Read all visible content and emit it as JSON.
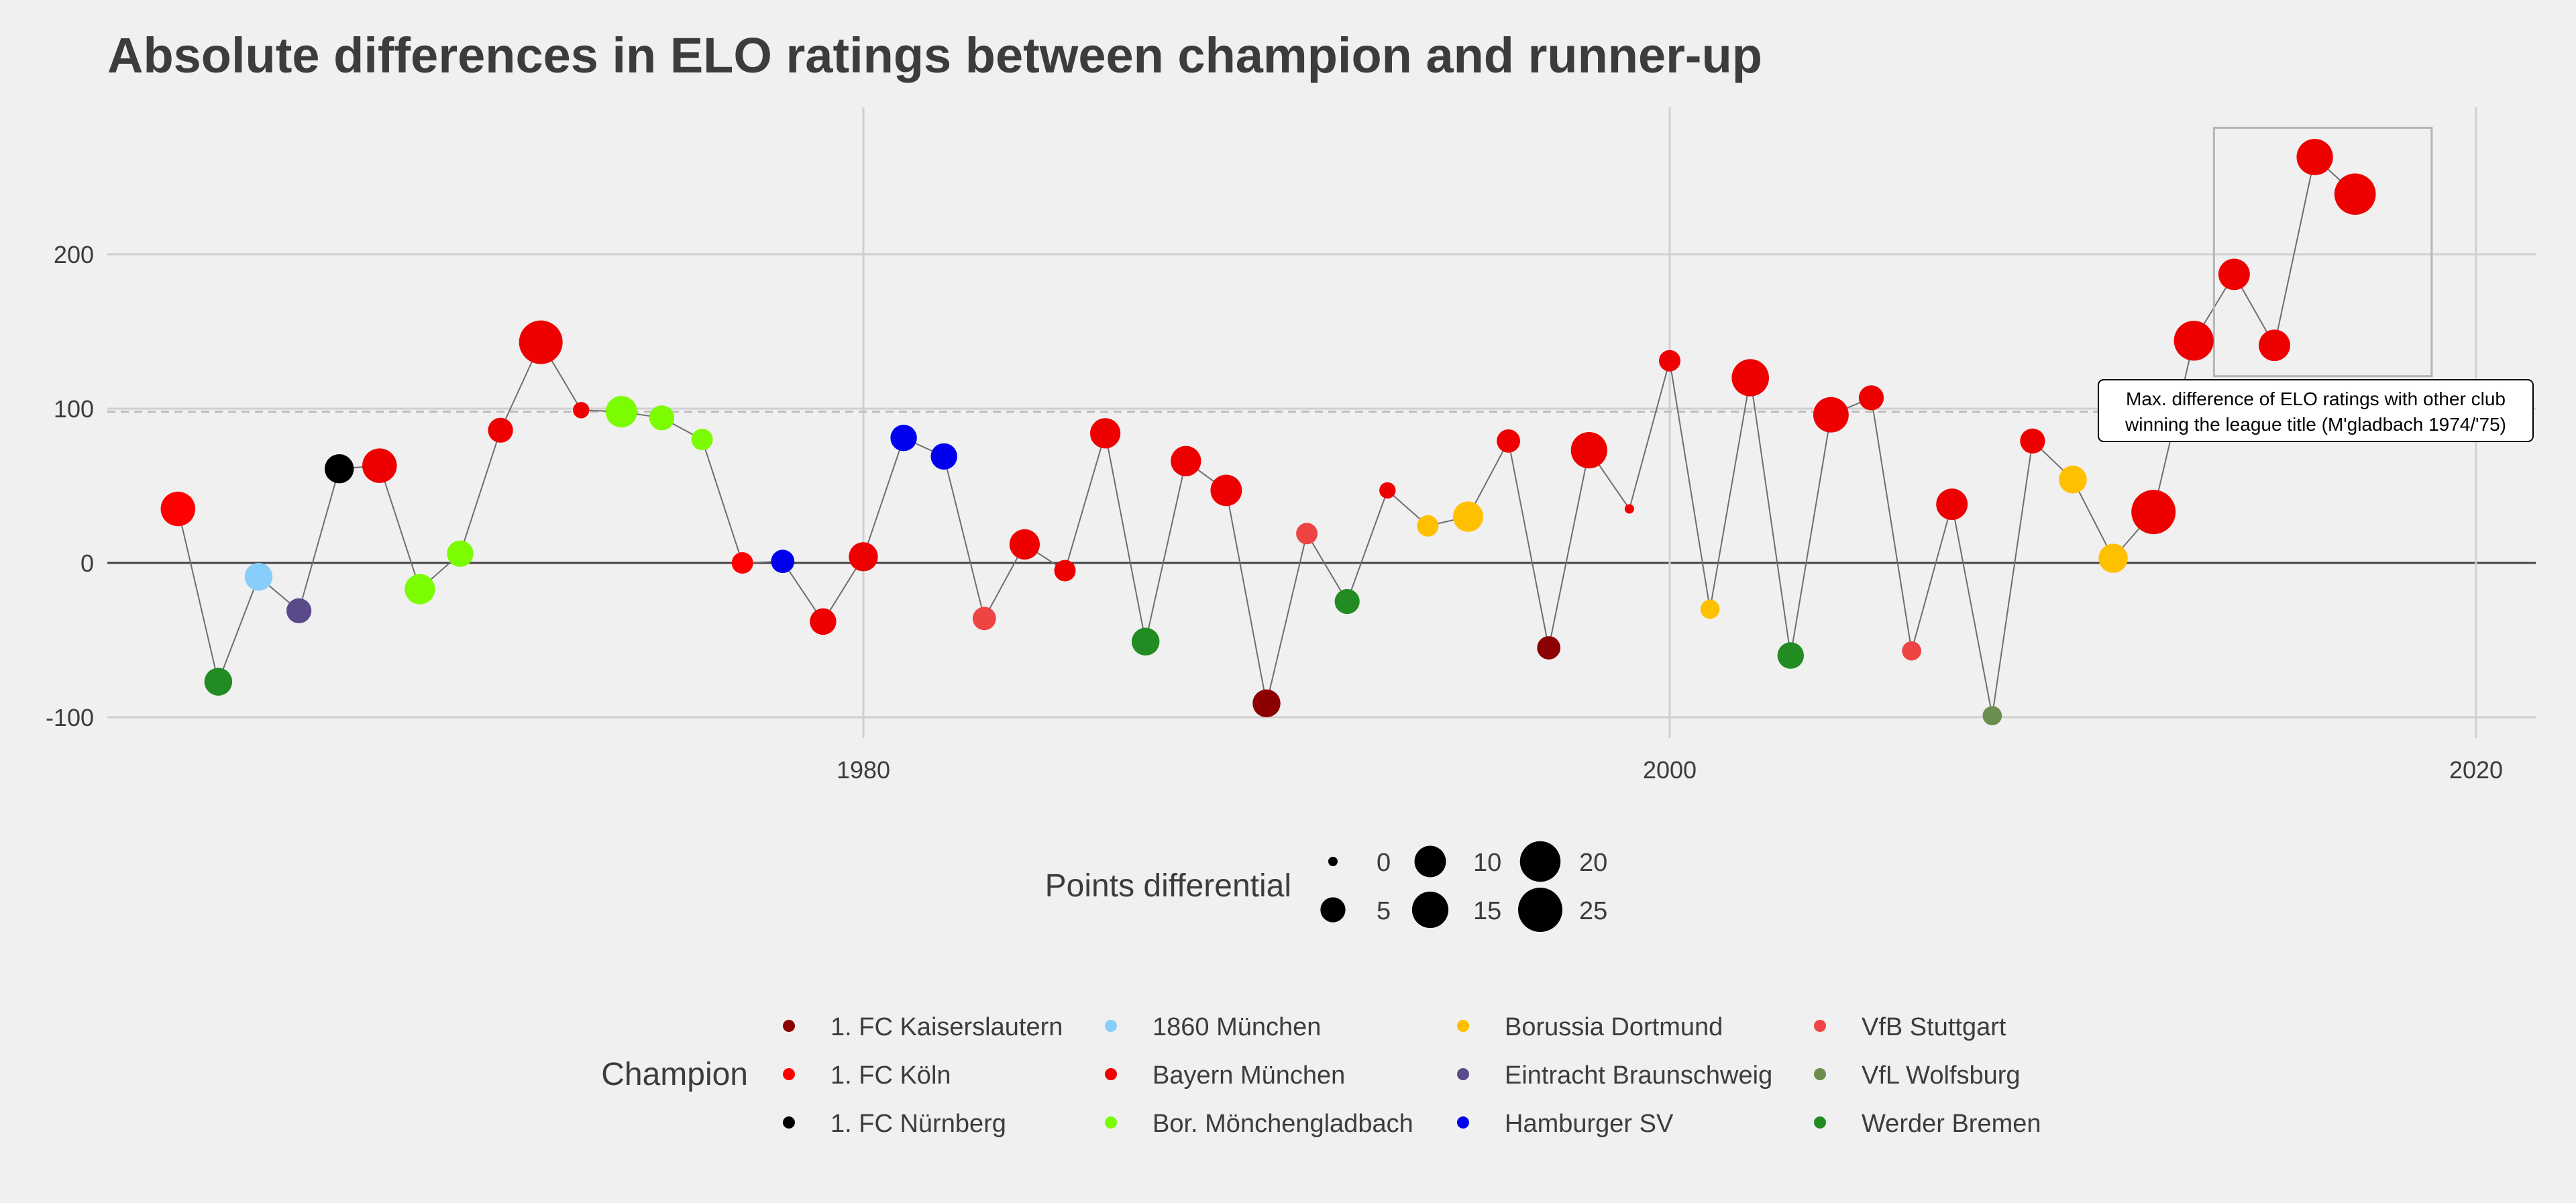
{
  "chart_data": {
    "type": "scatter",
    "title": "Absolute differences in ELO ratings between champion and runner-up",
    "xlabel": "",
    "ylabel": "",
    "xlim": [
      1962,
      2020.5
    ],
    "ylim": [
      -100,
      280
    ],
    "x_ticks": [
      1980,
      2000,
      2020
    ],
    "y_ticks": [
      -100,
      0,
      100,
      200
    ],
    "x_tick_labels": [
      "1980",
      "2000",
      "2020"
    ],
    "y_tick_labels": [
      "-100",
      "0",
      "100",
      "200"
    ],
    "reference_line": 98,
    "grid": true,
    "size_legend": {
      "title": "Points differential",
      "values": [
        0,
        5,
        10,
        15,
        20,
        25
      ],
      "labels": [
        "0",
        "5",
        "10",
        "15",
        "20",
        "25"
      ]
    },
    "color_legend": {
      "title": "Champion",
      "entries": [
        {
          "name": "1. FC Kaiserslautern",
          "color": "#8b0000"
        },
        {
          "name": "1. FC Köln",
          "color": "#ff0000"
        },
        {
          "name": "1. FC Nürnberg",
          "color": "#000000"
        },
        {
          "name": "1860 München",
          "color": "#87cefa"
        },
        {
          "name": "Bayern München",
          "color": "#ee0000"
        },
        {
          "name": "Bor. Mönchengladbach",
          "color": "#7cfc00"
        },
        {
          "name": "Borussia Dortmund",
          "color": "#ffc000"
        },
        {
          "name": "Eintracht Braunschweig",
          "color": "#5a4a8a"
        },
        {
          "name": "Hamburger SV",
          "color": "#0000ee"
        },
        {
          "name": "VfB Stuttgart",
          "color": "#ef4444"
        },
        {
          "name": "VfL Wolfsburg",
          "color": "#6b8e4e"
        },
        {
          "name": "Werder Bremen",
          "color": "#228b22"
        }
      ]
    },
    "annotation": {
      "lines": [
        "Max. difference of ELO ratings with other club",
        "winning the league title (M'gladbach 1974/'75)"
      ],
      "box_x": [
        2013.5,
        2018.9
      ],
      "box_y": [
        121,
        282
      ]
    },
    "points": [
      {
        "year": 1963,
        "diff": 35,
        "club": "1. FC Köln",
        "pts": 13
      },
      {
        "year": 1964,
        "diff": -77,
        "club": "Werder Bremen",
        "pts": 7
      },
      {
        "year": 1965,
        "diff": -9,
        "club": "1860 München",
        "pts": 7
      },
      {
        "year": 1966,
        "diff": -31,
        "club": "Eintracht Braunschweig",
        "pts": 5
      },
      {
        "year": 1967,
        "diff": 61,
        "club": "1. FC Nürnberg",
        "pts": 8
      },
      {
        "year": 1968,
        "diff": 63,
        "club": "Bayern München",
        "pts": 13
      },
      {
        "year": 1969,
        "diff": -17,
        "club": "Bor. Mönchengladbach",
        "pts": 9
      },
      {
        "year": 1970,
        "diff": 6,
        "club": "Bor. Mönchengladbach",
        "pts": 6
      },
      {
        "year": 1971,
        "diff": 86,
        "club": "Bayern München",
        "pts": 5
      },
      {
        "year": 1972,
        "diff": 143,
        "club": "Bayern München",
        "pts": 24
      },
      {
        "year": 1973,
        "diff": 99,
        "club": "Bayern München",
        "pts": 1
      },
      {
        "year": 1974,
        "diff": 98,
        "club": "Bor. Mönchengladbach",
        "pts": 10
      },
      {
        "year": 1975,
        "diff": 94,
        "club": "Bor. Mönchengladbach",
        "pts": 5
      },
      {
        "year": 1976,
        "diff": 80,
        "club": "Bor. Mönchengladbach",
        "pts": 3
      },
      {
        "year": 1977,
        "diff": 0,
        "club": "1. FC Köln",
        "pts": 3
      },
      {
        "year": 1978,
        "diff": 1,
        "club": "Hamburger SV",
        "pts": 4
      },
      {
        "year": 1979,
        "diff": -38,
        "club": "Bayern München",
        "pts": 6
      },
      {
        "year": 1980,
        "diff": 4,
        "club": "Bayern München",
        "pts": 8
      },
      {
        "year": 1981,
        "diff": 81,
        "club": "Hamburger SV",
        "pts": 6
      },
      {
        "year": 1982,
        "diff": 69,
        "club": "Hamburger SV",
        "pts": 6
      },
      {
        "year": 1983,
        "diff": -36,
        "club": "VfB Stuttgart",
        "pts": 4
      },
      {
        "year": 1984,
        "diff": 12,
        "club": "Bayern München",
        "pts": 9
      },
      {
        "year": 1985,
        "diff": -5,
        "club": "Bayern München",
        "pts": 3
      },
      {
        "year": 1986,
        "diff": 84,
        "club": "Bayern München",
        "pts": 9
      },
      {
        "year": 1987,
        "diff": -51,
        "club": "Werder Bremen",
        "pts": 7
      },
      {
        "year": 1988,
        "diff": 66,
        "club": "Bayern München",
        "pts": 9
      },
      {
        "year": 1989,
        "diff": 47,
        "club": "Bayern München",
        "pts": 10
      },
      {
        "year": 1990,
        "diff": -91,
        "club": "1. FC Kaiserslautern",
        "pts": 7
      },
      {
        "year": 1991,
        "diff": 19,
        "club": "VfB Stuttgart",
        "pts": 3
      },
      {
        "year": 1992,
        "diff": -25,
        "club": "Werder Bremen",
        "pts": 5
      },
      {
        "year": 1993,
        "diff": 47,
        "club": "Bayern München",
        "pts": 1
      },
      {
        "year": 1994,
        "diff": 24,
        "club": "Borussia Dortmund",
        "pts": 3
      },
      {
        "year": 1995,
        "diff": 30,
        "club": "Borussia Dortmund",
        "pts": 9
      },
      {
        "year": 1996,
        "diff": 79,
        "club": "Bayern München",
        "pts": 4
      },
      {
        "year": 1997,
        "diff": -55,
        "club": "1. FC Kaiserslautern",
        "pts": 4
      },
      {
        "year": 1998,
        "diff": 73,
        "club": "Bayern München",
        "pts": 15
      },
      {
        "year": 1999,
        "diff": 35,
        "club": "Bayern München",
        "pts": 0
      },
      {
        "year": 2000,
        "diff": 131,
        "club": "Bayern München",
        "pts": 3
      },
      {
        "year": 2001,
        "diff": -30,
        "club": "Borussia Dortmund",
        "pts": 2
      },
      {
        "year": 2002,
        "diff": 120,
        "club": "Bayern München",
        "pts": 16
      },
      {
        "year": 2003,
        "diff": -60,
        "club": "Werder Bremen",
        "pts": 6
      },
      {
        "year": 2004,
        "diff": 96,
        "club": "Bayern München",
        "pts": 14
      },
      {
        "year": 2005,
        "diff": 107,
        "club": "Bayern München",
        "pts": 5
      },
      {
        "year": 2006,
        "diff": -57,
        "club": "VfB Stuttgart",
        "pts": 2
      },
      {
        "year": 2007,
        "diff": 38,
        "club": "Bayern München",
        "pts": 10
      },
      {
        "year": 2008,
        "diff": -99,
        "club": "VfL Wolfsburg",
        "pts": 2
      },
      {
        "year": 2009,
        "diff": 79,
        "club": "Bayern München",
        "pts": 5
      },
      {
        "year": 2010,
        "diff": 54,
        "club": "Borussia Dortmund",
        "pts": 7
      },
      {
        "year": 2011,
        "diff": 3,
        "club": "Borussia Dortmund",
        "pts": 8
      },
      {
        "year": 2012,
        "diff": 33,
        "club": "Bayern München",
        "pts": 25
      },
      {
        "year": 2013,
        "diff": 144,
        "club": "Bayern München",
        "pts": 19
      },
      {
        "year": 2014,
        "diff": 187,
        "club": "Bayern München",
        "pts": 10
      },
      {
        "year": 2015,
        "diff": 141,
        "club": "Bayern München",
        "pts": 10
      },
      {
        "year": 2016,
        "diff": 263,
        "club": "Bayern München",
        "pts": 15
      },
      {
        "year": 2017,
        "diff": 239,
        "club": "Bayern München",
        "pts": 21
      }
    ]
  }
}
